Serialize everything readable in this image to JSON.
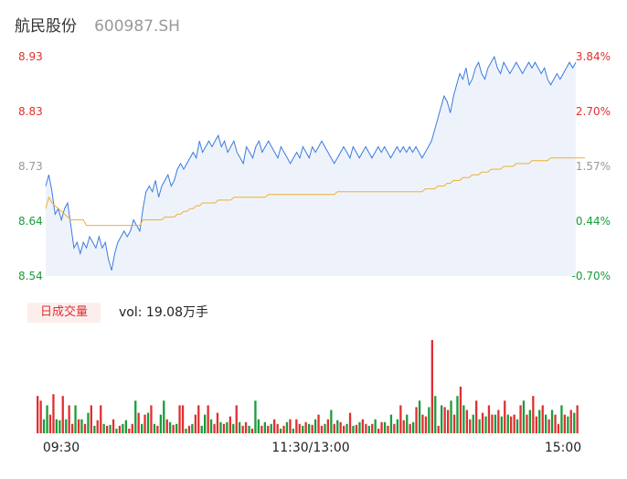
{
  "header": {
    "name": "航民股份",
    "code": "600987.SH"
  },
  "chart_data": {
    "type": "line",
    "price_axis": {
      "ticks": [
        "8.93",
        "8.83",
        "8.73",
        "8.64",
        "8.54"
      ],
      "min": 8.54,
      "max": 8.93
    },
    "pct_axis": {
      "ticks": [
        "3.84%",
        "2.70%",
        "1.57%",
        "0.44%",
        "-0.70%"
      ]
    },
    "axis_colors": [
      "#e03030",
      "#e03030",
      "#999999",
      "#1a9c3a",
      "#1a9c3a"
    ],
    "time_labels": [
      "09:30",
      "11:30/13:00",
      "15:00"
    ],
    "price": [
      8.7,
      8.72,
      8.69,
      8.65,
      8.66,
      8.64,
      8.66,
      8.67,
      8.63,
      8.59,
      8.6,
      8.58,
      8.6,
      8.59,
      8.61,
      8.6,
      8.59,
      8.61,
      8.59,
      8.6,
      8.57,
      8.55,
      8.58,
      8.6,
      8.61,
      8.62,
      8.61,
      8.62,
      8.64,
      8.63,
      8.62,
      8.66,
      8.69,
      8.7,
      8.69,
      8.71,
      8.68,
      8.7,
      8.71,
      8.72,
      8.7,
      8.71,
      8.73,
      8.74,
      8.73,
      8.74,
      8.75,
      8.76,
      8.75,
      8.78,
      8.76,
      8.77,
      8.78,
      8.77,
      8.78,
      8.79,
      8.77,
      8.78,
      8.76,
      8.77,
      8.78,
      8.76,
      8.75,
      8.74,
      8.77,
      8.76,
      8.75,
      8.77,
      8.78,
      8.76,
      8.77,
      8.78,
      8.77,
      8.76,
      8.75,
      8.77,
      8.76,
      8.75,
      8.74,
      8.75,
      8.76,
      8.75,
      8.77,
      8.76,
      8.75,
      8.77,
      8.76,
      8.77,
      8.78,
      8.77,
      8.76,
      8.75,
      8.74,
      8.75,
      8.76,
      8.77,
      8.76,
      8.75,
      8.77,
      8.76,
      8.75,
      8.76,
      8.77,
      8.76,
      8.75,
      8.76,
      8.77,
      8.76,
      8.77,
      8.76,
      8.75,
      8.76,
      8.77,
      8.76,
      8.77,
      8.76,
      8.77,
      8.76,
      8.77,
      8.76,
      8.75,
      8.76,
      8.77,
      8.78,
      8.8,
      8.82,
      8.84,
      8.86,
      8.85,
      8.83,
      8.86,
      8.88,
      8.9,
      8.89,
      8.91,
      8.88,
      8.89,
      8.91,
      8.92,
      8.9,
      8.89,
      8.91,
      8.92,
      8.93,
      8.91,
      8.9,
      8.92,
      8.91,
      8.9,
      8.91,
      8.92,
      8.91,
      8.9,
      8.91,
      8.92,
      8.91,
      8.92,
      8.91,
      8.9,
      8.91,
      8.89,
      8.88,
      8.89,
      8.9,
      8.89,
      8.9,
      8.91,
      8.92,
      8.91,
      8.92
    ],
    "avg": [
      8.66,
      8.68,
      8.67,
      8.665,
      8.66,
      8.655,
      8.65,
      8.645,
      8.64,
      8.64,
      8.64,
      8.64,
      8.64,
      8.63,
      8.63,
      8.63,
      8.63,
      8.63,
      8.63,
      8.63,
      8.63,
      8.63,
      8.63,
      8.63,
      8.63,
      8.63,
      8.63,
      8.63,
      8.63,
      8.63,
      8.63,
      8.64,
      8.64,
      8.64,
      8.64,
      8.64,
      8.64,
      8.64,
      8.645,
      8.645,
      8.645,
      8.645,
      8.65,
      8.65,
      8.655,
      8.655,
      8.66,
      8.66,
      8.665,
      8.665,
      8.67,
      8.67,
      8.67,
      8.67,
      8.67,
      8.675,
      8.675,
      8.675,
      8.675,
      8.675,
      8.68,
      8.68,
      8.68,
      8.68,
      8.68,
      8.68,
      8.68,
      8.68,
      8.68,
      8.68,
      8.68,
      8.685,
      8.685,
      8.685,
      8.685,
      8.685,
      8.685,
      8.685,
      8.685,
      8.685,
      8.685,
      8.685,
      8.685,
      8.685,
      8.685,
      8.685,
      8.685,
      8.685,
      8.685,
      8.685,
      8.685,
      8.685,
      8.685,
      8.69,
      8.69,
      8.69,
      8.69,
      8.69,
      8.69,
      8.69,
      8.69,
      8.69,
      8.69,
      8.69,
      8.69,
      8.69,
      8.69,
      8.69,
      8.69,
      8.69,
      8.69,
      8.69,
      8.69,
      8.69,
      8.69,
      8.69,
      8.69,
      8.69,
      8.69,
      8.69,
      8.69,
      8.695,
      8.695,
      8.695,
      8.695,
      8.7,
      8.7,
      8.7,
      8.705,
      8.705,
      8.71,
      8.71,
      8.71,
      8.715,
      8.715,
      8.715,
      8.72,
      8.72,
      8.72,
      8.725,
      8.725,
      8.725,
      8.73,
      8.73,
      8.73,
      8.73,
      8.735,
      8.735,
      8.735,
      8.735,
      8.74,
      8.74,
      8.74,
      8.74,
      8.74,
      8.745,
      8.745,
      8.745,
      8.745,
      8.745,
      8.745,
      8.75,
      8.75,
      8.75,
      8.75,
      8.75,
      8.75,
      8.75,
      8.75,
      8.75,
      8.75,
      8.75,
      8.75
    ],
    "volume": [
      40,
      35,
      15,
      30,
      20,
      42,
      15,
      14,
      40,
      15,
      30,
      10,
      30,
      15,
      15,
      10,
      22,
      30,
      8,
      14,
      30,
      10,
      8,
      9,
      15,
      5,
      8,
      10,
      14,
      5,
      10,
      35,
      22,
      10,
      20,
      22,
      30,
      10,
      8,
      20,
      35,
      15,
      12,
      9,
      10,
      30,
      30,
      5,
      8,
      10,
      20,
      30,
      8,
      20,
      30,
      15,
      10,
      22,
      12,
      10,
      12,
      18,
      10,
      30,
      12,
      8,
      12,
      8,
      5,
      35,
      15,
      8,
      12,
      8,
      10,
      15,
      10,
      5,
      8,
      12,
      15,
      5,
      15,
      10,
      8,
      12,
      10,
      9,
      15,
      20,
      8,
      10,
      15,
      25,
      10,
      14,
      12,
      8,
      10,
      22,
      8,
      9,
      12,
      15,
      10,
      8,
      10,
      15,
      5,
      12,
      12,
      8,
      20,
      10,
      15,
      30,
      14,
      20,
      10,
      12,
      28,
      35,
      20,
      18,
      28,
      100,
      40,
      8,
      30,
      28,
      25,
      35,
      20,
      40,
      50,
      30,
      25,
      15,
      20,
      35,
      15,
      22,
      18,
      30,
      20,
      20,
      25,
      18,
      35,
      20,
      18,
      20,
      15,
      30,
      35,
      20,
      25,
      40,
      18,
      25,
      30,
      20,
      15,
      25,
      20,
      10,
      30,
      20,
      18,
      25,
      22,
      30
    ],
    "vol_colors_up": [
      1,
      1,
      0,
      0,
      1,
      1,
      0,
      0,
      1,
      0,
      1,
      1,
      0,
      1,
      0,
      1,
      0,
      1,
      0,
      1,
      1,
      0,
      1,
      0,
      1,
      0,
      1,
      0,
      0,
      1,
      1,
      0,
      1,
      0,
      1,
      0,
      1,
      0,
      1,
      0,
      0,
      1,
      0,
      1,
      0,
      1,
      1,
      0,
      1,
      0,
      1,
      1,
      0,
      0,
      1,
      0,
      1,
      1,
      0,
      1,
      0,
      1,
      0,
      1,
      0,
      1,
      1,
      0,
      1,
      0,
      0,
      1,
      0,
      1,
      0,
      1,
      1,
      0,
      1,
      0,
      1,
      0,
      1,
      1,
      0,
      1,
      0,
      1,
      0,
      1,
      1,
      0,
      1,
      0,
      1,
      0,
      1,
      1,
      0,
      1,
      0,
      1,
      0,
      1,
      1,
      0,
      1,
      0,
      1,
      1,
      0,
      1,
      0,
      1,
      0,
      1,
      1,
      0,
      1,
      0,
      1,
      0,
      1,
      1,
      0,
      1,
      0,
      1,
      0,
      1,
      1,
      0,
      1,
      0,
      1,
      0,
      1,
      1,
      0,
      1,
      0,
      1,
      0,
      1,
      1,
      0,
      1,
      0,
      1,
      0,
      1,
      1,
      0,
      1,
      0,
      1,
      0,
      1,
      1,
      0,
      1,
      0,
      1,
      0,
      1,
      1,
      0,
      1,
      0,
      1,
      0,
      1
    ],
    "volume_summary": "vol: 19.08万手",
    "volume_label": "日成交量"
  }
}
